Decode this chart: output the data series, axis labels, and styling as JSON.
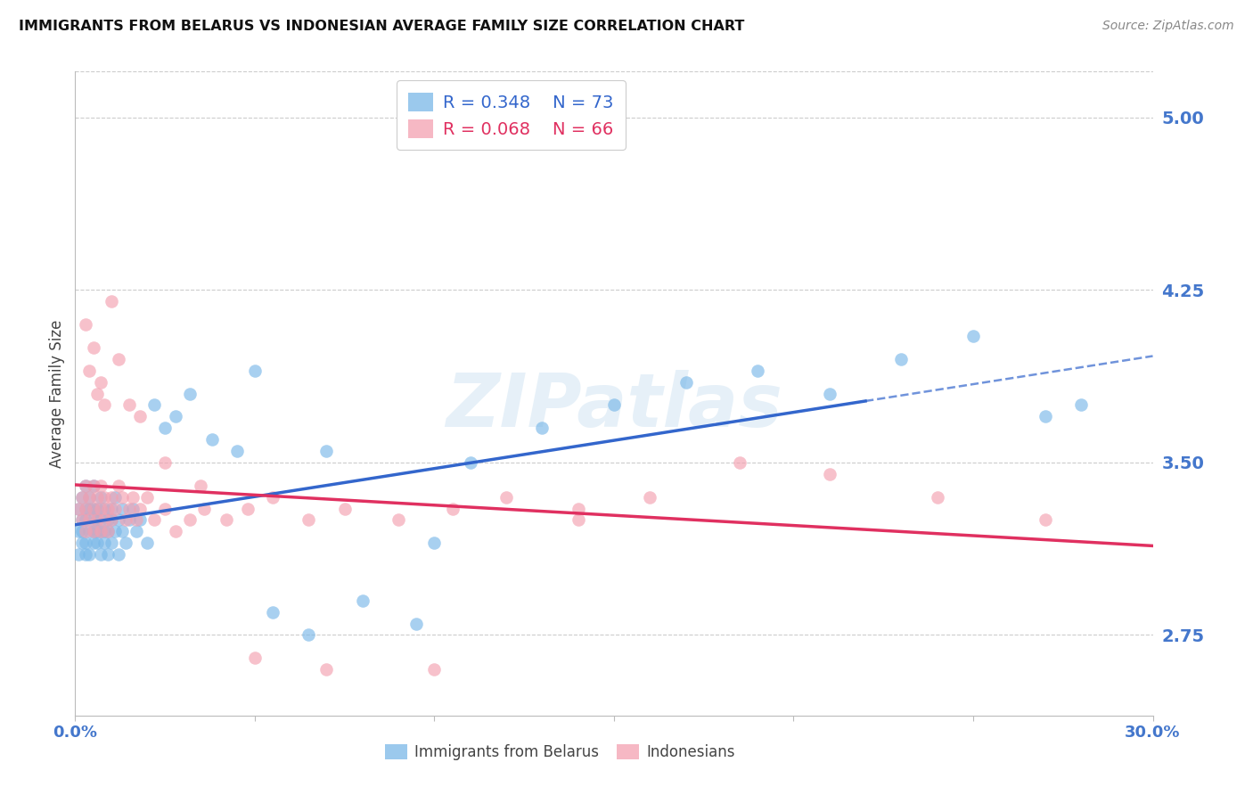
{
  "title": "IMMIGRANTS FROM BELARUS VS INDONESIAN AVERAGE FAMILY SIZE CORRELATION CHART",
  "source": "Source: ZipAtlas.com",
  "ylabel": "Average Family Size",
  "xlim": [
    0.0,
    0.3
  ],
  "ylim": [
    2.4,
    5.2
  ],
  "yticks": [
    2.75,
    3.5,
    4.25,
    5.0
  ],
  "legend_blue_R": "R = 0.348",
  "legend_blue_N": "N = 73",
  "legend_pink_R": "R = 0.068",
  "legend_pink_N": "N = 66",
  "blue_color": "#7ab8e8",
  "pink_color": "#f4a0b0",
  "blue_line_color": "#3366cc",
  "pink_line_color": "#e03060",
  "axis_color": "#4477cc",
  "grid_color": "#cccccc",
  "background_color": "#ffffff",
  "watermark": "ZIPatlas",
  "blue_scatter_x": [
    0.001,
    0.001,
    0.001,
    0.002,
    0.002,
    0.002,
    0.002,
    0.003,
    0.003,
    0.003,
    0.003,
    0.003,
    0.004,
    0.004,
    0.004,
    0.004,
    0.005,
    0.005,
    0.005,
    0.005,
    0.005,
    0.006,
    0.006,
    0.006,
    0.006,
    0.007,
    0.007,
    0.007,
    0.007,
    0.008,
    0.008,
    0.008,
    0.009,
    0.009,
    0.009,
    0.01,
    0.01,
    0.01,
    0.011,
    0.011,
    0.012,
    0.012,
    0.013,
    0.013,
    0.014,
    0.015,
    0.016,
    0.017,
    0.018,
    0.02,
    0.022,
    0.025,
    0.028,
    0.032,
    0.038,
    0.045,
    0.055,
    0.065,
    0.08,
    0.095,
    0.11,
    0.13,
    0.15,
    0.17,
    0.19,
    0.21,
    0.23,
    0.25,
    0.27,
    0.28,
    0.05,
    0.07,
    0.1
  ],
  "blue_scatter_y": [
    3.2,
    3.1,
    3.3,
    3.25,
    3.15,
    3.35,
    3.2,
    3.1,
    3.25,
    3.3,
    3.15,
    3.4,
    3.2,
    3.1,
    3.3,
    3.35,
    3.2,
    3.15,
    3.3,
    3.25,
    3.4,
    3.2,
    3.3,
    3.15,
    3.25,
    3.2,
    3.35,
    3.1,
    3.25,
    3.2,
    3.3,
    3.15,
    3.25,
    3.1,
    3.2,
    3.3,
    3.15,
    3.25,
    3.2,
    3.35,
    3.1,
    3.25,
    3.2,
    3.3,
    3.15,
    3.25,
    3.3,
    3.2,
    3.25,
    3.15,
    3.75,
    3.65,
    3.7,
    3.8,
    3.6,
    3.55,
    2.85,
    2.75,
    2.9,
    2.8,
    3.5,
    3.65,
    3.75,
    3.85,
    3.9,
    3.8,
    3.95,
    4.05,
    3.7,
    3.75,
    3.9,
    3.55,
    3.15
  ],
  "pink_scatter_x": [
    0.001,
    0.002,
    0.002,
    0.003,
    0.003,
    0.003,
    0.004,
    0.004,
    0.005,
    0.005,
    0.005,
    0.006,
    0.006,
    0.007,
    0.007,
    0.007,
    0.008,
    0.008,
    0.009,
    0.009,
    0.01,
    0.01,
    0.011,
    0.012,
    0.013,
    0.014,
    0.015,
    0.016,
    0.017,
    0.018,
    0.02,
    0.022,
    0.025,
    0.028,
    0.032,
    0.036,
    0.042,
    0.048,
    0.055,
    0.065,
    0.075,
    0.09,
    0.105,
    0.12,
    0.14,
    0.16,
    0.185,
    0.21,
    0.24,
    0.27,
    0.003,
    0.004,
    0.005,
    0.006,
    0.007,
    0.008,
    0.01,
    0.012,
    0.015,
    0.018,
    0.025,
    0.035,
    0.05,
    0.07,
    0.1,
    0.14
  ],
  "pink_scatter_y": [
    3.3,
    3.25,
    3.35,
    3.2,
    3.3,
    3.4,
    3.25,
    3.35,
    3.2,
    3.3,
    3.4,
    3.25,
    3.35,
    3.2,
    3.3,
    3.4,
    3.25,
    3.35,
    3.2,
    3.3,
    3.35,
    3.25,
    3.3,
    3.4,
    3.35,
    3.25,
    3.3,
    3.35,
    3.25,
    3.3,
    3.35,
    3.25,
    3.3,
    3.2,
    3.25,
    3.3,
    3.25,
    3.3,
    3.35,
    3.25,
    3.3,
    3.25,
    3.3,
    3.35,
    3.25,
    3.35,
    3.5,
    3.45,
    3.35,
    3.25,
    4.1,
    3.9,
    4.0,
    3.8,
    3.85,
    3.75,
    4.2,
    3.95,
    3.75,
    3.7,
    3.5,
    3.4,
    2.65,
    2.6,
    2.6,
    3.3
  ]
}
